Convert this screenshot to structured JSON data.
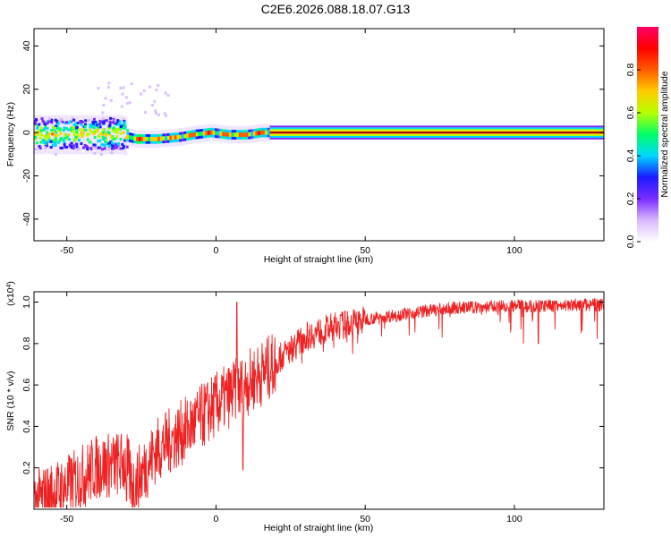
{
  "title": "C2E6.2026.088.18.07.G13",
  "chart_data": [
    {
      "type": "heatmap",
      "xlabel": "Height of straight line (km)",
      "ylabel": "Frequency (Hz)",
      "xlim": [
        -61,
        130
      ],
      "ylim": [
        -50,
        48
      ],
      "xticks": [
        -50,
        0,
        50,
        100
      ],
      "xtick_labels": [
        "-50",
        "0",
        "50",
        "100"
      ],
      "yticks": [
        40,
        20,
        0,
        -20,
        -40
      ],
      "ytick_labels": [
        "40",
        "20",
        "0",
        "-20",
        "-40"
      ],
      "centerline_hz": [
        {
          "x": -61,
          "y": -1
        },
        {
          "x": -32,
          "y": -1
        },
        {
          "x": -30,
          "y": -2
        },
        {
          "x": -27,
          "y": -3
        },
        {
          "x": -20,
          "y": -3
        },
        {
          "x": -12,
          "y": -2
        },
        {
          "x": -8,
          "y": -1
        },
        {
          "x": -2,
          "y": 0
        },
        {
          "x": 4,
          "y": -1
        },
        {
          "x": 10,
          "y": -1
        },
        {
          "x": 15,
          "y": 0
        },
        {
          "x": 20,
          "y": 0
        },
        {
          "x": 130,
          "y": 0
        }
      ],
      "colorbar": {
        "label": "Normalized spectral amplitude",
        "range": [
          0.0,
          1.0
        ],
        "ticks": [
          0.0,
          0.2,
          0.4,
          0.6,
          0.8
        ],
        "tick_labels": [
          "0.0",
          "0.2",
          "0.4",
          "0.6",
          "0.8"
        ],
        "colors": [
          "#ffffff",
          "#d9b8ff",
          "#7a2cff",
          "#1a1aff",
          "#00d8ff",
          "#00ff66",
          "#b8ff00",
          "#ffcc00",
          "#ff5a00",
          "#ff0000",
          "#ff0066"
        ]
      }
    },
    {
      "type": "line",
      "xlabel": "Height of straight line (km)",
      "ylabel": "SNR (10 * v/v)",
      "scale_label": "(x10",
      "scale_exponent": "4",
      "scale_close": ")",
      "xlim": [
        -61,
        130
      ],
      "ylim": [
        0.0,
        1.05
      ],
      "xticks": [
        -50,
        0,
        50,
        100
      ],
      "xtick_labels": [
        "-50",
        "0",
        "50",
        "100"
      ],
      "yticks": [
        1.0,
        0.8,
        0.6,
        0.4,
        0.2
      ],
      "ytick_labels": [
        "1.0",
        "0.8",
        "0.6",
        "0.4",
        "0.2"
      ],
      "line_color": "#ee2222",
      "trend": [
        {
          "x": -61,
          "y": 0.05
        },
        {
          "x": -50,
          "y": 0.12
        },
        {
          "x": -40,
          "y": 0.22
        },
        {
          "x": -30,
          "y": 0.24
        },
        {
          "x": -28,
          "y": 0.12
        },
        {
          "x": -20,
          "y": 0.3
        },
        {
          "x": -10,
          "y": 0.4
        },
        {
          "x": 0,
          "y": 0.52
        },
        {
          "x": 10,
          "y": 0.62
        },
        {
          "x": 20,
          "y": 0.72
        },
        {
          "x": 30,
          "y": 0.84
        },
        {
          "x": 40,
          "y": 0.89
        },
        {
          "x": 50,
          "y": 0.92
        },
        {
          "x": 60,
          "y": 0.94
        },
        {
          "x": 70,
          "y": 0.96
        },
        {
          "x": 80,
          "y": 0.975
        },
        {
          "x": 90,
          "y": 0.98
        },
        {
          "x": 100,
          "y": 0.985
        },
        {
          "x": 110,
          "y": 0.985
        },
        {
          "x": 120,
          "y": 0.99
        },
        {
          "x": 130,
          "y": 0.99
        }
      ],
      "notable_points": [
        {
          "x": 7,
          "y": 1.0,
          "note": "spike"
        },
        {
          "x": 9,
          "y": 0.19,
          "note": "dip"
        },
        {
          "x": -30,
          "y": 0.04,
          "note": "dip"
        },
        {
          "x": 108,
          "y": 0.8,
          "note": "dip"
        }
      ]
    }
  ]
}
